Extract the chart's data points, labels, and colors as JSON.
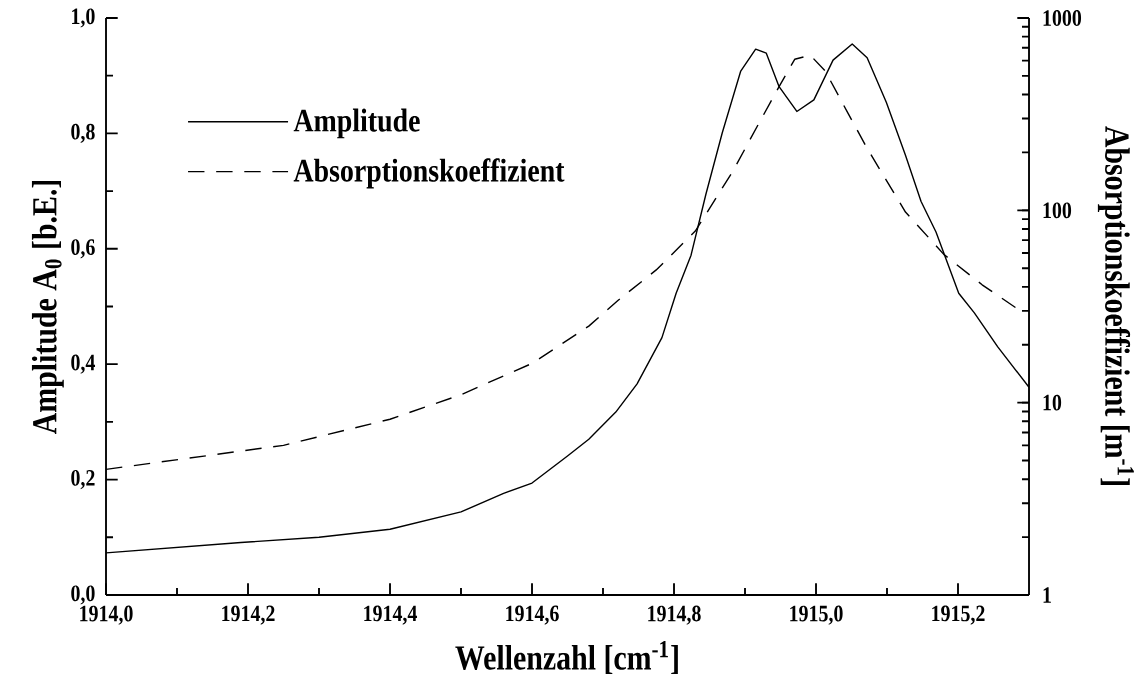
{
  "chart_data": {
    "type": "line",
    "xlabel": "Wellenzahl [cm$^{-1}$]",
    "ylabel": "Amplitude A$_{0}$ [b.E.]",
    "y2label": "Absorptionskoeffizient [m$^{-1}$]",
    "series": [
      {
        "name": "Amplitude",
        "color": "#000000",
        "line_style": "solid",
        "x": [
          1914.0,
          1914.19,
          1914.3,
          1914.4,
          1914.5,
          1914.56,
          1914.6,
          1914.65,
          1914.68,
          1914.718,
          1914.748,
          1914.783,
          1914.803,
          1914.824,
          1914.845,
          1914.868,
          1914.894,
          1914.915,
          1914.93,
          1914.948,
          1914.973,
          1914.997,
          1915.024,
          1915.051,
          1915.072,
          1915.099,
          1915.126,
          1915.148,
          1915.169,
          1915.201,
          1915.223,
          1915.256,
          1915.3
        ],
        "values": [
          0.073,
          0.091,
          0.1,
          0.114,
          0.144,
          0.176,
          0.194,
          0.241,
          0.27,
          0.317,
          0.366,
          0.446,
          0.523,
          0.589,
          0.695,
          0.801,
          0.908,
          0.946,
          0.939,
          0.881,
          0.838,
          0.858,
          0.927,
          0.955,
          0.931,
          0.854,
          0.762,
          0.682,
          0.629,
          0.523,
          0.489,
          0.43,
          0.36
        ]
      },
      {
        "name": "Absorptionskoeffizient",
        "color": "#000000",
        "line_style": "dashed",
        "axis": "y2",
        "x": [
          1914.0,
          1914.19,
          1914.25,
          1914.4,
          1914.5,
          1914.6,
          1914.68,
          1914.721,
          1914.775,
          1914.83,
          1914.883,
          1914.921,
          1914.948,
          1914.97,
          1914.992,
          1915.013,
          1915.045,
          1915.072,
          1915.126,
          1915.18,
          1915.234,
          1915.288
        ],
        "values": [
          4.5,
          5.6,
          6.0,
          8.2,
          11,
          16,
          25,
          34,
          49,
          78,
          160,
          290,
          440,
          610,
          640,
          530,
          320,
          210,
          98,
          59,
          41,
          30
        ]
      }
    ],
    "xlim": [
      1914.0,
      1915.3
    ],
    "xticks": [
      {
        "value": 1914.0,
        "label": "1914,0"
      },
      {
        "value": 1914.2,
        "label": "1914,2"
      },
      {
        "value": 1914.4,
        "label": "1914,4"
      },
      {
        "value": 1914.6,
        "label": "1914,6"
      },
      {
        "value": 1914.8,
        "label": "1914,8"
      },
      {
        "value": 1915.0,
        "label": "1915,0"
      },
      {
        "value": 1915.2,
        "label": "1915,2"
      }
    ],
    "ylim": [
      0,
      1
    ],
    "yticks": [
      {
        "value": 0,
        "label": "0,0"
      },
      {
        "value": 0.2,
        "label": "0,2"
      },
      {
        "value": 0.4,
        "label": "0,4"
      },
      {
        "value": 0.6,
        "label": "0,6"
      },
      {
        "value": 0.8,
        "label": "0,8"
      },
      {
        "value": 1,
        "label": "1,0"
      }
    ],
    "y2lim": [
      1,
      1000
    ],
    "y2ticks": [
      1,
      10,
      100,
      1000
    ],
    "log": "y2",
    "legend": "top left",
    "grid": false,
    "marker": "none"
  }
}
